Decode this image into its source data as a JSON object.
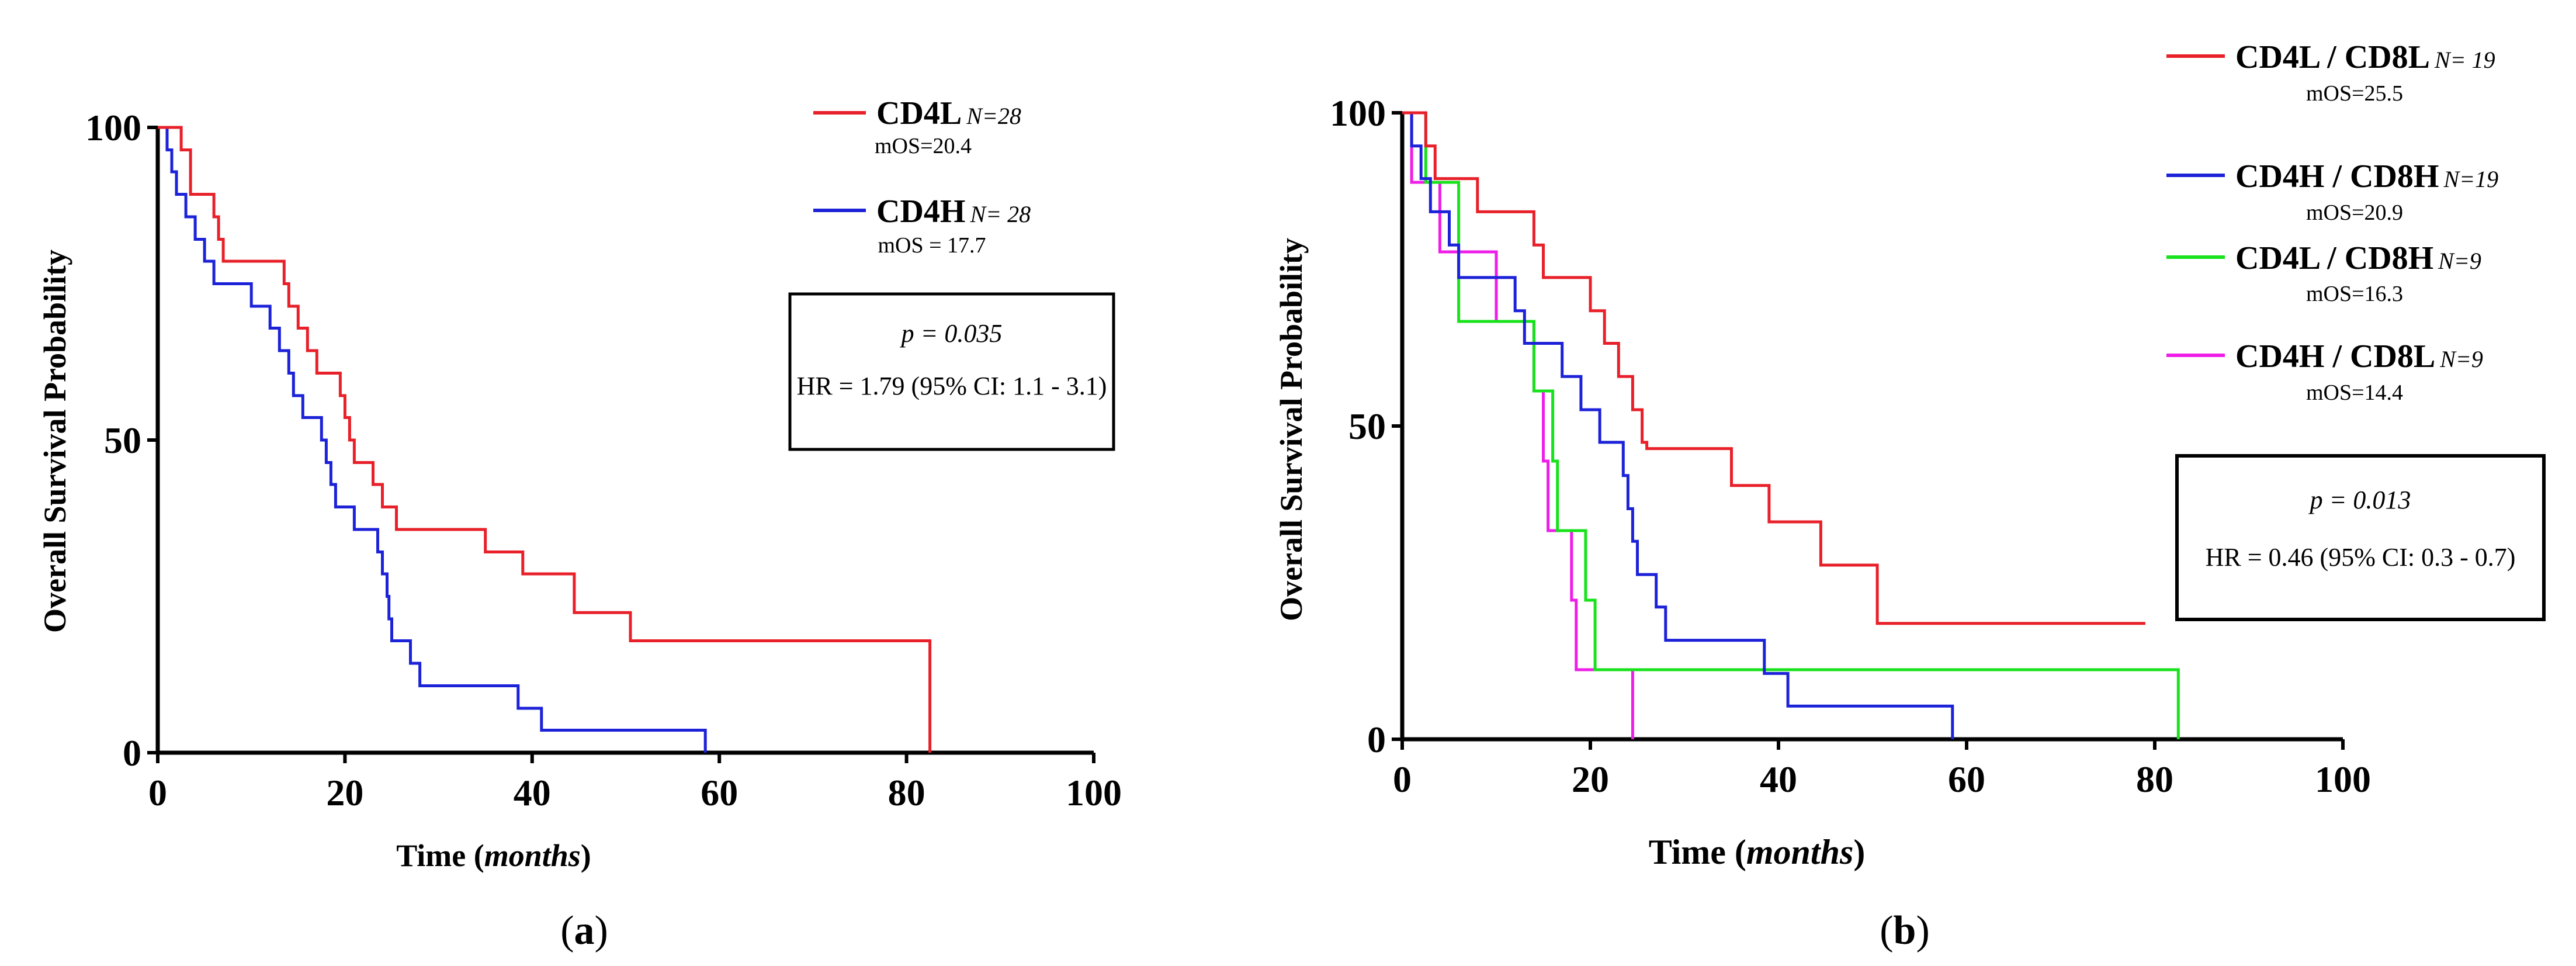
{
  "chart_data": [
    {
      "type": "line",
      "step": true,
      "panel_label": "(a)",
      "panel_letter": "a",
      "ylabel": "Overall Survival Probability",
      "xlabel_prefix": "Time (",
      "xlabel_italic": "months",
      "xlabel_suffix": ")",
      "xlim": [
        0,
        100
      ],
      "ylim": [
        0,
        100
      ],
      "xticks": [
        "0",
        "20",
        "40",
        "60",
        "80",
        "100"
      ],
      "yticks": [
        "0",
        "50",
        "100"
      ],
      "stats": {
        "p": "p = 0.035",
        "hr": "HR = 1.79 (95% CI: 1.1 - 3.1)"
      },
      "series": [
        {
          "name": "CD4L",
          "n": "N=28",
          "mos": "mOS=20.4",
          "color": "#e8202a",
          "points": [
            [
              0,
              100
            ],
            [
              2.5,
              100
            ],
            [
              2.5,
              96.4
            ],
            [
              3.5,
              96.4
            ],
            [
              3.5,
              92.9
            ],
            [
              3.5,
              89.3
            ],
            [
              6,
              89.3
            ],
            [
              6,
              85.7
            ],
            [
              6.5,
              85.7
            ],
            [
              6.5,
              82.1
            ],
            [
              7,
              82.1
            ],
            [
              7,
              78.6
            ],
            [
              13.5,
              78.6
            ],
            [
              13.5,
              75
            ],
            [
              14,
              75
            ],
            [
              14,
              71.4
            ],
            [
              15,
              71.4
            ],
            [
              15,
              67.9
            ],
            [
              16,
              67.9
            ],
            [
              16,
              64.3
            ],
            [
              17,
              64.3
            ],
            [
              17,
              60.7
            ],
            [
              19.5,
              60.7
            ],
            [
              19.5,
              57.1
            ],
            [
              20,
              57.1
            ],
            [
              20,
              53.6
            ],
            [
              20.5,
              53.6
            ],
            [
              20.5,
              50
            ],
            [
              21,
              50
            ],
            [
              21,
              46.4
            ],
            [
              23,
              46.4
            ],
            [
              23,
              42.9
            ],
            [
              24,
              42.9
            ],
            [
              24,
              39.3
            ],
            [
              25.5,
              39.3
            ],
            [
              25.5,
              35.7
            ],
            [
              35,
              35.7
            ],
            [
              35,
              32.1
            ],
            [
              39,
              32.1
            ],
            [
              39,
              28.6
            ],
            [
              44.5,
              28.6
            ],
            [
              44.5,
              25
            ],
            [
              44.5,
              22.4
            ],
            [
              50.5,
              22.4
            ],
            [
              50.5,
              17.9
            ],
            [
              82.5,
              17.9
            ],
            [
              82.5,
              0
            ]
          ]
        },
        {
          "name": "CD4H",
          "n": "N= 28",
          "mos": "mOS = 17.7",
          "color": "#1c22d8",
          "points": [
            [
              0,
              100
            ],
            [
              1,
              100
            ],
            [
              1,
              96.4
            ],
            [
              1.5,
              96.4
            ],
            [
              1.5,
              92.9
            ],
            [
              2,
              92.9
            ],
            [
              2,
              89.3
            ],
            [
              3,
              89.3
            ],
            [
              3,
              85.7
            ],
            [
              4,
              85.7
            ],
            [
              4,
              82.1
            ],
            [
              5,
              82.1
            ],
            [
              5,
              78.6
            ],
            [
              6,
              78.6
            ],
            [
              6,
              75
            ],
            [
              10,
              75
            ],
            [
              10,
              71.4
            ],
            [
              12,
              71.4
            ],
            [
              12,
              67.9
            ],
            [
              13,
              67.9
            ],
            [
              13,
              64.3
            ],
            [
              14,
              64.3
            ],
            [
              14,
              60.7
            ],
            [
              14.5,
              60.7
            ],
            [
              14.5,
              57.1
            ],
            [
              15.5,
              57.1
            ],
            [
              15.5,
              53.6
            ],
            [
              17.5,
              53.6
            ],
            [
              17.5,
              50
            ],
            [
              18,
              50
            ],
            [
              18,
              46.4
            ],
            [
              18.5,
              46.4
            ],
            [
              18.5,
              42.9
            ],
            [
              19,
              42.9
            ],
            [
              19,
              39.3
            ],
            [
              21,
              39.3
            ],
            [
              21,
              35.7
            ],
            [
              23.5,
              35.7
            ],
            [
              23.5,
              32.1
            ],
            [
              24,
              32.1
            ],
            [
              24,
              28.6
            ],
            [
              24.5,
              28.6
            ],
            [
              24.5,
              25
            ],
            [
              24.7,
              25
            ],
            [
              24.7,
              21.4
            ],
            [
              25,
              21.4
            ],
            [
              25,
              17.9
            ],
            [
              27,
              17.9
            ],
            [
              27,
              14.3
            ],
            [
              28,
              14.3
            ],
            [
              28,
              10.7
            ],
            [
              38.5,
              10.7
            ],
            [
              38.5,
              7.1
            ],
            [
              41,
              7.1
            ],
            [
              41,
              3.6
            ],
            [
              58.5,
              3.6
            ],
            [
              58.5,
              0
            ]
          ]
        }
      ]
    },
    {
      "type": "line",
      "step": true,
      "panel_label": "(b)",
      "panel_letter": "b",
      "ylabel": "Overall Survival Probability",
      "xlabel_prefix": "Time (",
      "xlabel_italic": "months",
      "xlabel_suffix": ")",
      "xlim": [
        0,
        100
      ],
      "ylim": [
        0,
        100
      ],
      "xticks": [
        "0",
        "20",
        "40",
        "60",
        "80",
        "100"
      ],
      "yticks": [
        "0",
        "50",
        "100"
      ],
      "stats": {
        "p": "p = 0.013",
        "hr": "HR = 0.46 (95% CI: 0.3 - 0.7)"
      },
      "series": [
        {
          "name": "CD4L / CD8L",
          "n": "N= 19",
          "mos": "mOS=25.5",
          "color": "#e8202a",
          "points": [
            [
              0,
              100
            ],
            [
              2.5,
              100
            ],
            [
              2.5,
              94.7
            ],
            [
              3.5,
              94.7
            ],
            [
              3.5,
              89.5
            ],
            [
              8,
              89.5
            ],
            [
              8,
              84.2
            ],
            [
              14,
              84.2
            ],
            [
              14,
              78.9
            ],
            [
              15,
              78.9
            ],
            [
              15,
              73.7
            ],
            [
              20,
              73.7
            ],
            [
              20,
              68.4
            ],
            [
              21.5,
              68.4
            ],
            [
              21.5,
              63.2
            ],
            [
              23,
              63.2
            ],
            [
              23,
              57.9
            ],
            [
              24.5,
              57.9
            ],
            [
              24.5,
              52.6
            ],
            [
              25.5,
              52.6
            ],
            [
              25.5,
              47.4
            ],
            [
              26,
              47.4
            ],
            [
              26,
              46.4
            ],
            [
              35,
              46.4
            ],
            [
              35,
              40.5
            ],
            [
              39,
              40.5
            ],
            [
              39,
              34.7
            ],
            [
              44.5,
              34.7
            ],
            [
              44.5,
              27.8
            ],
            [
              50.5,
              27.8
            ],
            [
              50.5,
              18.5
            ],
            [
              79,
              18.5
            ]
          ]
        },
        {
          "name": "CD4H / CD8H",
          "n": "N=19",
          "mos": "mOS=20.9",
          "color": "#1c22d8",
          "points": [
            [
              0,
              100
            ],
            [
              1,
              100
            ],
            [
              1,
              94.7
            ],
            [
              2,
              94.7
            ],
            [
              2,
              89.5
            ],
            [
              3,
              89.5
            ],
            [
              3,
              84.2
            ],
            [
              5,
              84.2
            ],
            [
              5,
              78.9
            ],
            [
              6,
              78.9
            ],
            [
              6,
              73.7
            ],
            [
              12,
              73.7
            ],
            [
              12,
              68.4
            ],
            [
              13,
              68.4
            ],
            [
              13,
              63.2
            ],
            [
              17,
              63.2
            ],
            [
              17,
              57.9
            ],
            [
              19,
              57.9
            ],
            [
              19,
              52.6
            ],
            [
              21,
              52.6
            ],
            [
              21,
              47.4
            ],
            [
              23.5,
              47.4
            ],
            [
              23.5,
              42.1
            ],
            [
              24,
              42.1
            ],
            [
              24,
              36.8
            ],
            [
              24.5,
              36.8
            ],
            [
              24.5,
              31.6
            ],
            [
              25,
              31.6
            ],
            [
              25,
              26.3
            ],
            [
              27,
              26.3
            ],
            [
              27,
              21.1
            ],
            [
              28,
              21.1
            ],
            [
              28,
              15.8
            ],
            [
              38.5,
              15.8
            ],
            [
              38.5,
              10.5
            ],
            [
              41,
              10.5
            ],
            [
              41,
              5.3
            ],
            [
              58.5,
              5.3
            ],
            [
              58.5,
              0
            ]
          ]
        },
        {
          "name": "CD4L / CD8H",
          "n": "N=9",
          "mos": "mOS=16.3",
          "color": "#17e21b",
          "points": [
            [
              0,
              100
            ],
            [
              2.5,
              100
            ],
            [
              2.5,
              88.9
            ],
            [
              6,
              88.9
            ],
            [
              6,
              66.7
            ],
            [
              14,
              66.7
            ],
            [
              14,
              55.6
            ],
            [
              16,
              55.6
            ],
            [
              16,
              44.4
            ],
            [
              16.5,
              44.4
            ],
            [
              16.5,
              33.3
            ],
            [
              19.5,
              33.3
            ],
            [
              19.5,
              22.2
            ],
            [
              20.5,
              22.2
            ],
            [
              20.5,
              11.1
            ],
            [
              82.5,
              11.1
            ],
            [
              82.5,
              0
            ]
          ]
        },
        {
          "name": "CD4H / CD8L",
          "n": "N=9",
          "mos": "mOS=14.4",
          "color": "#ee1ee8",
          "points": [
            [
              0,
              100
            ],
            [
              1,
              100
            ],
            [
              1,
              88.9
            ],
            [
              4,
              88.9
            ],
            [
              4,
              77.8
            ],
            [
              10,
              77.8
            ],
            [
              10,
              66.7
            ],
            [
              14,
              66.7
            ],
            [
              14,
              55.6
            ],
            [
              15,
              55.6
            ],
            [
              15,
              44.4
            ],
            [
              15.5,
              44.4
            ],
            [
              15.5,
              33.3
            ],
            [
              18,
              33.3
            ],
            [
              18,
              22.2
            ],
            [
              18.5,
              22.2
            ],
            [
              18.5,
              11.1
            ],
            [
              24.5,
              11.1
            ],
            [
              24.5,
              0
            ]
          ]
        }
      ]
    }
  ]
}
